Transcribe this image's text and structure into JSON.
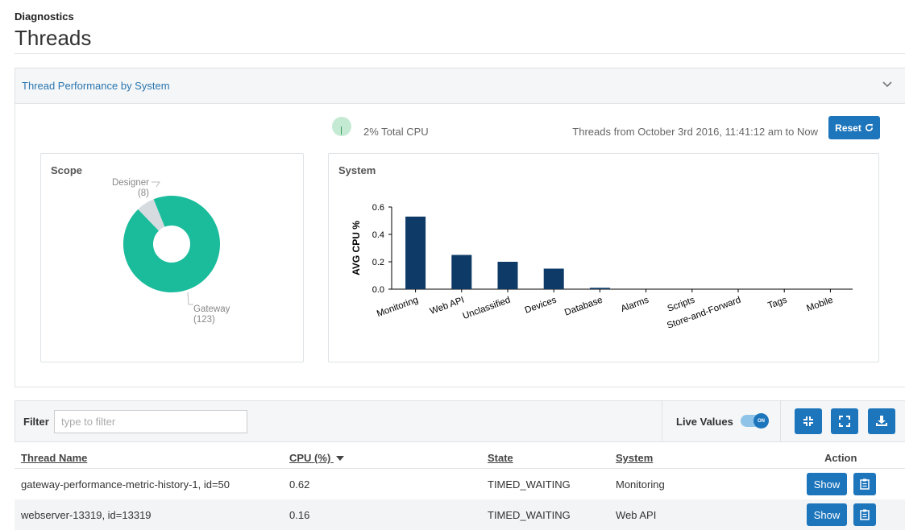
{
  "header": {
    "breadcrumb": "Diagnostics",
    "title": "Threads"
  },
  "panel": {
    "title": "Thread Performance by System",
    "total_cpu": "2% Total CPU",
    "threads_from": "Threads from October 3rd 2016, 11:41:12 am to Now",
    "reset_label": "Reset"
  },
  "scope": {
    "title": "Scope",
    "designer_label": "Designer",
    "designer_count": "(8)",
    "gateway_label": "Gateway",
    "gateway_count": "(123)"
  },
  "system": {
    "title": "System"
  },
  "chart_data": [
    {
      "type": "pie",
      "title": "Scope",
      "categories": [
        "Gateway",
        "Designer"
      ],
      "values": [
        123,
        8
      ],
      "colors": [
        "#1abc9c",
        "#d5dbde"
      ]
    },
    {
      "type": "bar",
      "title": "System",
      "categories": [
        "Monitoring",
        "Web API",
        "Unclassified",
        "Devices",
        "Database",
        "Alarms",
        "Scripts",
        "Store-and-Forward",
        "Tags",
        "Mobile"
      ],
      "values": [
        0.53,
        0.25,
        0.2,
        0.15,
        0.01,
        0,
        0,
        0,
        0,
        0
      ],
      "ylabel": "AVG CPU %",
      "ylim": [
        0,
        0.6
      ],
      "yticks": [
        "0.0",
        "0.2",
        "0.4",
        "0.6"
      ],
      "color": "#0d3a66"
    }
  ],
  "toolbar": {
    "filter_label": "Filter",
    "filter_placeholder": "type to filter",
    "filter_value": "",
    "live_values_label": "Live Values",
    "toggle_text": "ON"
  },
  "table": {
    "columns": [
      "Thread Name",
      "CPU (%)",
      "State",
      "System",
      "Action"
    ],
    "rows": [
      {
        "name": "gateway-performance-metric-history-1, id=50",
        "cpu": "0.62",
        "state": "TIMED_WAITING",
        "system": "Monitoring",
        "action": "Show"
      },
      {
        "name": "webserver-13319, id=13319",
        "cpu": "0.16",
        "state": "TIMED_WAITING",
        "system": "Web API",
        "action": "Show"
      }
    ]
  },
  "colors": {
    "accent": "#1d75bc",
    "link": "#2a76b0",
    "bar": "#0d3a66",
    "pie_primary": "#1abc9c"
  }
}
